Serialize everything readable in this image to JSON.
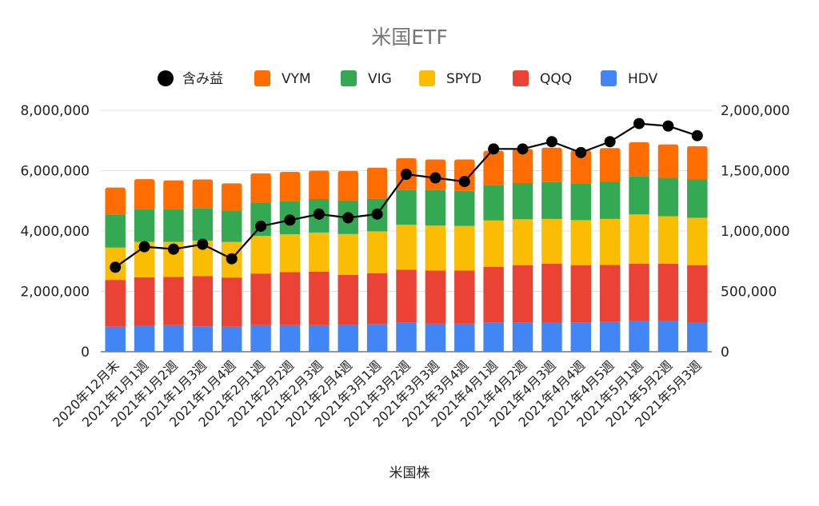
{
  "chart_data": {
    "type": "bar",
    "stacked": true,
    "title": "米国ETF",
    "xlabel": "米国株",
    "ylabel": "",
    "y2label": "",
    "ylim": [
      0,
      8000000
    ],
    "y2lim": [
      0,
      2000000
    ],
    "yticks": [
      "0",
      "2,000,000",
      "4,000,000",
      "6,000,000",
      "8,000,000"
    ],
    "y2ticks": [
      "0",
      "500,000",
      "1,000,000",
      "1,500,000",
      "2,000,000"
    ],
    "grid": true,
    "legend_position": "top",
    "categories": [
      "2020年12月末",
      "2021年1月1週",
      "2021年1月2週",
      "2021年1月3週",
      "2021年1月4週",
      "2021年2月1週",
      "2021年2月2週",
      "2021年2月3週",
      "2021年2月4週",
      "2021年3月1週",
      "2021年3月2週",
      "2021年3月3週",
      "2021年3月4週",
      "2021年4月1週",
      "2021年4月2週",
      "2021年4月3週",
      "2021年4月4週",
      "2021年4月5週",
      "2021年5月1週",
      "2021年5月2週",
      "2021年5月3週"
    ],
    "series": [
      {
        "name": "HDV",
        "color": "#4285f4",
        "values": [
          830000,
          850000,
          880000,
          840000,
          830000,
          880000,
          880000,
          880000,
          890000,
          920000,
          960000,
          930000,
          930000,
          970000,
          970000,
          980000,
          970000,
          990000,
          1010000,
          1010000,
          980000
        ]
      },
      {
        "name": "QQQ",
        "color": "#ea4335",
        "values": [
          1550000,
          1620000,
          1600000,
          1670000,
          1630000,
          1710000,
          1760000,
          1770000,
          1660000,
          1680000,
          1760000,
          1760000,
          1760000,
          1840000,
          1900000,
          1940000,
          1900000,
          1890000,
          1910000,
          1910000,
          1890000
        ]
      },
      {
        "name": "SPYD",
        "color": "#fbbc04",
        "values": [
          1070000,
          1170000,
          1160000,
          1170000,
          1180000,
          1250000,
          1250000,
          1300000,
          1350000,
          1390000,
          1490000,
          1490000,
          1480000,
          1540000,
          1520000,
          1480000,
          1490000,
          1520000,
          1630000,
          1570000,
          1570000
        ]
      },
      {
        "name": "VIG",
        "color": "#34a853",
        "values": [
          1100000,
          1080000,
          1080000,
          1080000,
          1040000,
          1110000,
          1110000,
          1110000,
          1110000,
          1080000,
          1150000,
          1180000,
          1160000,
          1180000,
          1200000,
          1220000,
          1220000,
          1230000,
          1270000,
          1270000,
          1270000
        ]
      },
      {
        "name": "VYM",
        "color": "#ff6d01",
        "values": [
          890000,
          1000000,
          960000,
          950000,
          900000,
          960000,
          960000,
          940000,
          980000,
          1030000,
          1050000,
          1010000,
          1040000,
          1130000,
          1130000,
          1140000,
          1100000,
          1120000,
          1120000,
          1110000,
          1100000
        ]
      }
    ],
    "line_series": {
      "name": "含み益",
      "axis": "right",
      "color": "#000000",
      "values": [
        700000,
        870000,
        850000,
        890000,
        770000,
        1040000,
        1090000,
        1140000,
        1110000,
        1140000,
        1470000,
        1440000,
        1410000,
        1680000,
        1680000,
        1740000,
        1650000,
        1740000,
        1890000,
        1870000,
        1790000
      ]
    }
  }
}
